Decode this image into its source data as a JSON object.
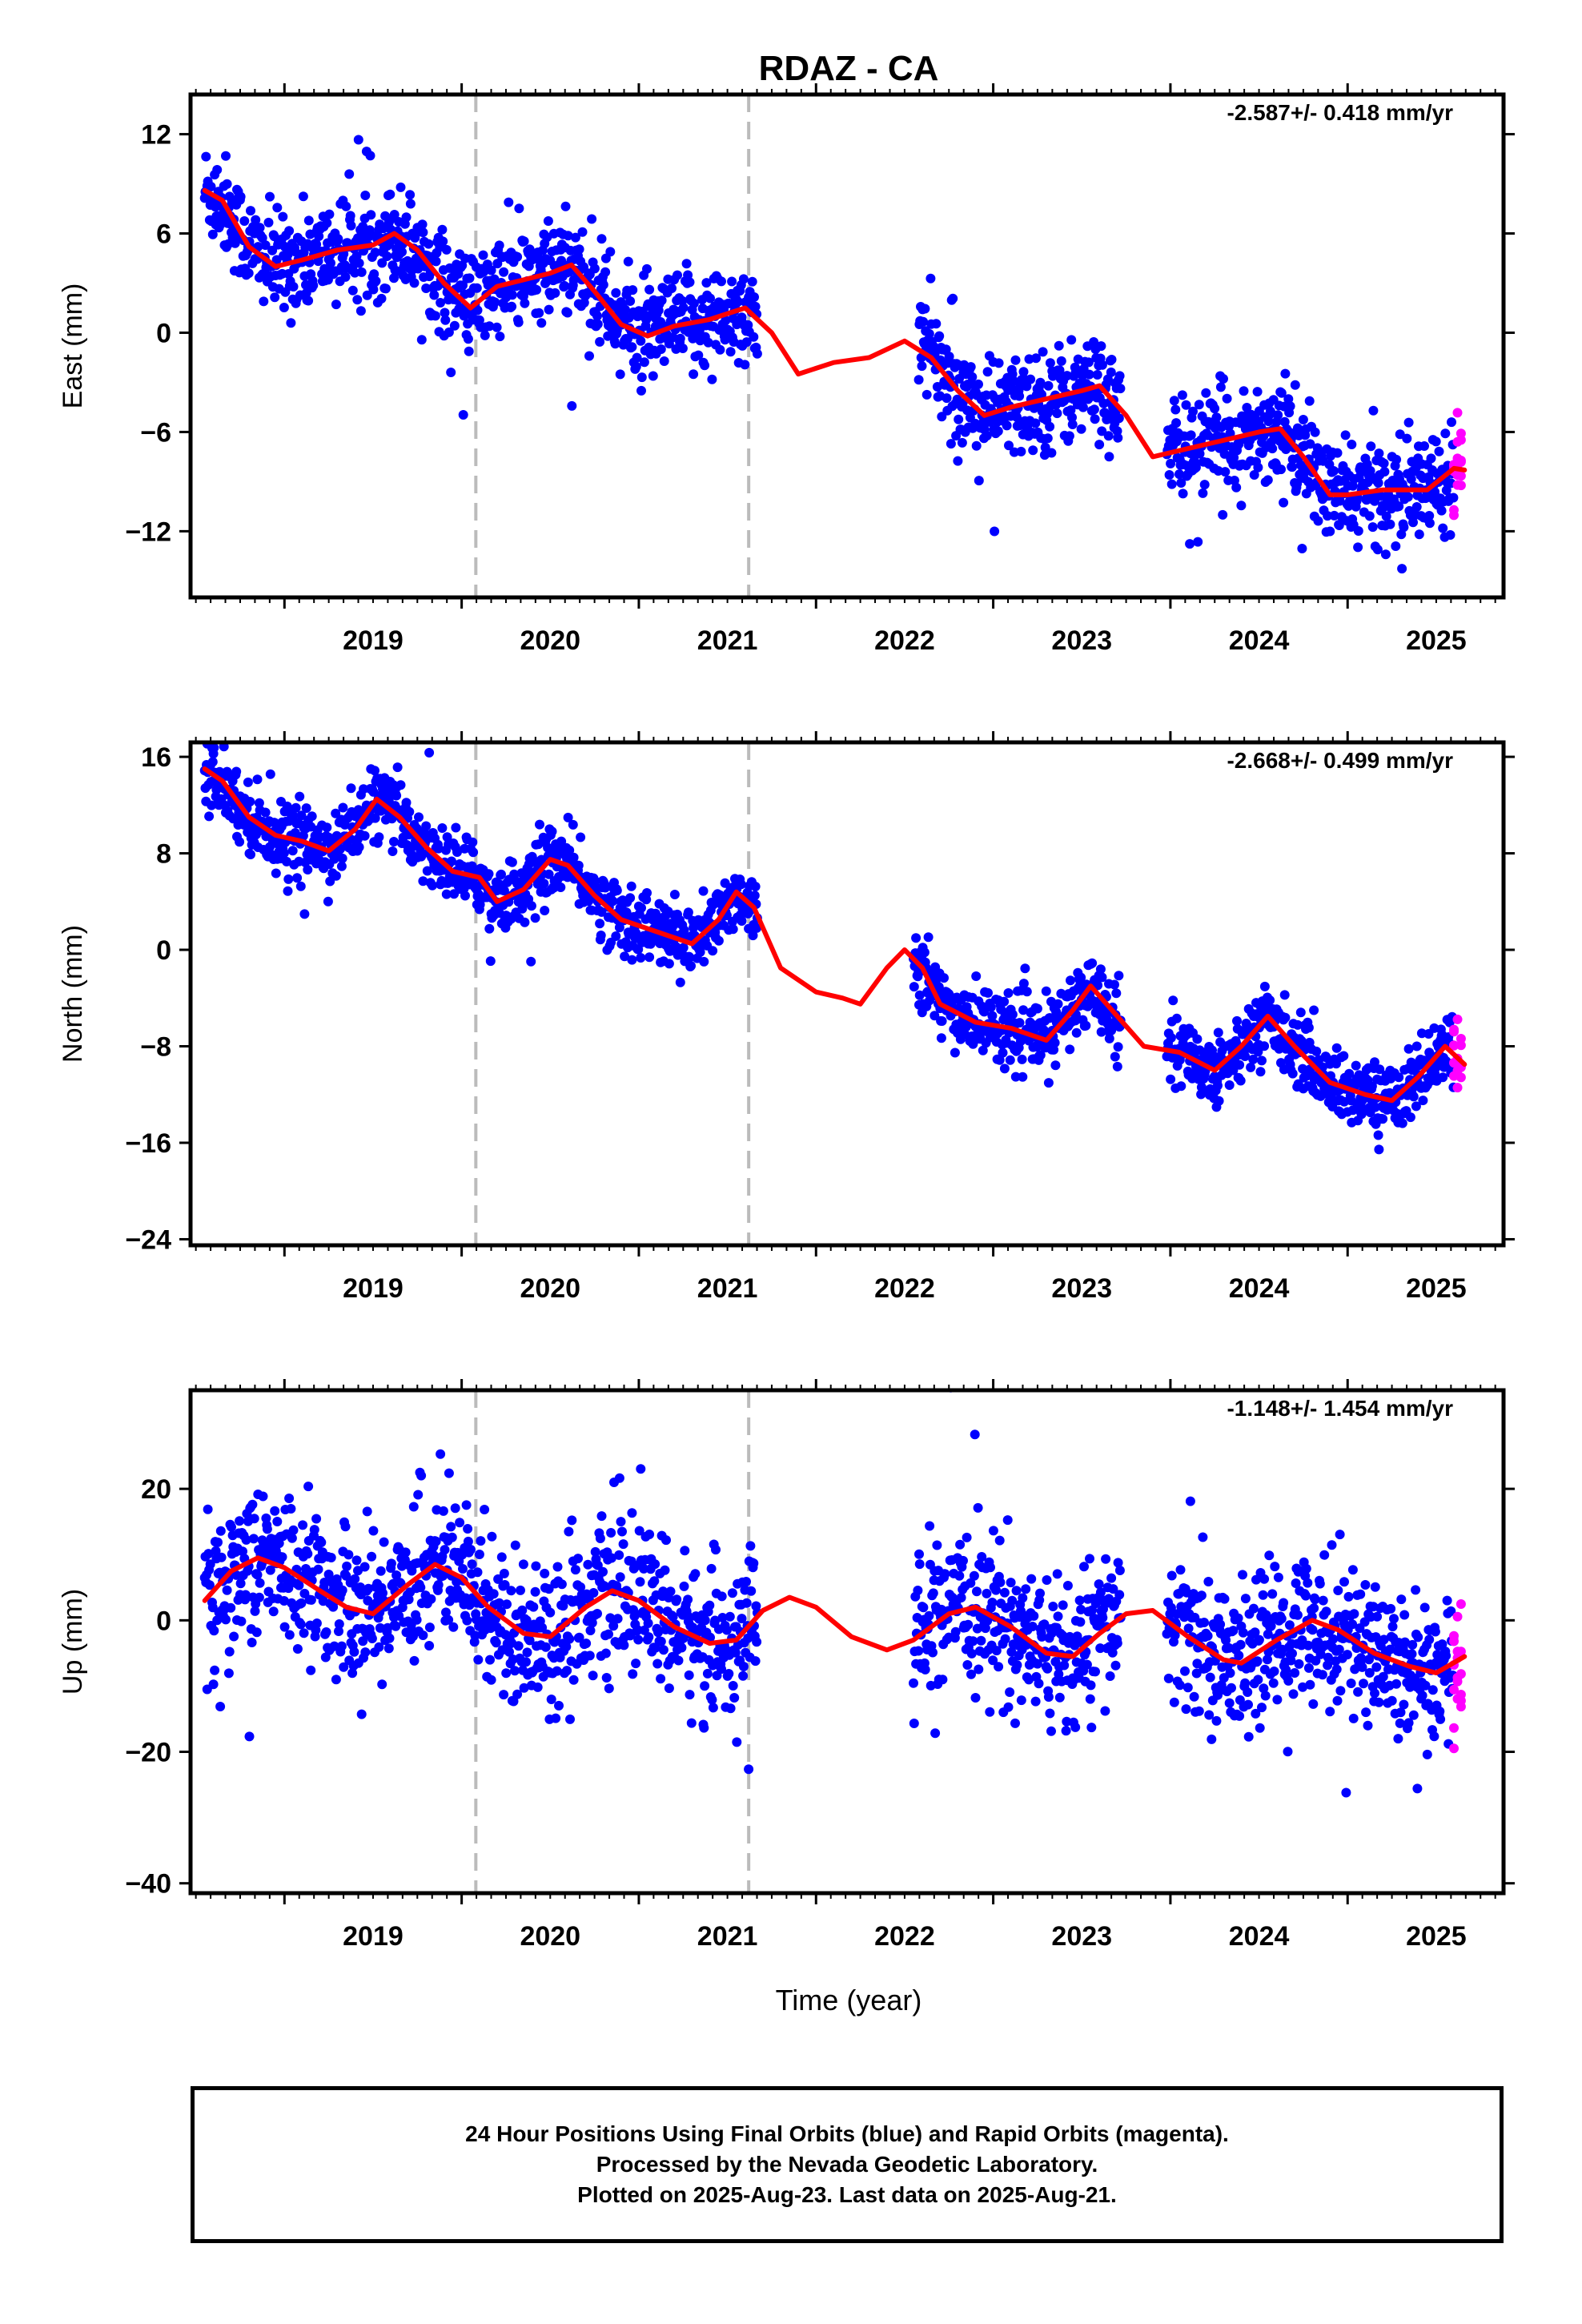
{
  "title": "RDAZ - CA",
  "xlabel": "Time (year)",
  "year_ticks": [
    "2019",
    "2020",
    "2021",
    "2022",
    "2023",
    "2024",
    "2025"
  ],
  "colors": {
    "final": "#0000ff",
    "rapid": "#ff00ff",
    "model": "#ff0000",
    "breaks": "#bbbbbb"
  },
  "footer": {
    "line1": "24 Hour Positions Using Final Orbits (blue) and Rapid Orbits (magenta).",
    "line2": "Processed by the Nevada Geodetic Laboratory.",
    "line3": "Plotted on 2025-Aug-23. Last data on 2025-Aug-21."
  },
  "chart_data": [
    {
      "type": "scatter",
      "component": "east",
      "ylabel": "East (mm)",
      "rate_label": "-2.587+/- 0.418 mm/yr",
      "xlim": [
        2018.47,
        2025.88
      ],
      "ylim": [
        -16,
        14.4
      ],
      "yticks": [
        12,
        6,
        0,
        -6,
        -12
      ],
      "ytick_labels": [
        "12",
        "6",
        "0",
        "−6",
        "−12"
      ],
      "equipment_breaks": [
        2020.08,
        2021.62
      ],
      "trend": {
        "offset": 8.5,
        "rate": -2.587,
        "t0": 2018.55
      },
      "seasonal": {
        "amp": 1.8,
        "phase": 0.3
      },
      "noise": 1.5,
      "gap_segments": [
        [
          2018.55,
          2021.67
        ],
        [
          2022.58,
          2023.72
        ],
        [
          2023.98,
          2025.6
        ]
      ],
      "rapid_range": [
        2025.6,
        2025.64
      ],
      "model_curve": [
        [
          2018.55,
          8.6
        ],
        [
          2018.65,
          8.0
        ],
        [
          2018.8,
          5.2
        ],
        [
          2018.95,
          4.0
        ],
        [
          2019.1,
          4.4
        ],
        [
          2019.3,
          5.0
        ],
        [
          2019.5,
          5.3
        ],
        [
          2019.62,
          6.0
        ],
        [
          2019.75,
          5.0
        ],
        [
          2019.9,
          3.0
        ],
        [
          2020.05,
          1.5
        ],
        [
          2020.2,
          2.8
        ],
        [
          2020.35,
          3.2
        ],
        [
          2020.5,
          3.6
        ],
        [
          2020.62,
          4.1
        ],
        [
          2020.75,
          2.5
        ],
        [
          2020.9,
          0.5
        ],
        [
          2021.05,
          -0.2
        ],
        [
          2021.2,
          0.4
        ],
        [
          2021.4,
          0.8
        ],
        [
          2021.6,
          1.5
        ],
        [
          2021.75,
          0.0
        ],
        [
          2021.9,
          -2.5
        ],
        [
          2022.1,
          -1.8
        ],
        [
          2022.3,
          -1.5
        ],
        [
          2022.5,
          -0.5
        ],
        [
          2022.65,
          -1.5
        ],
        [
          2022.8,
          -3.5
        ],
        [
          2022.95,
          -5.0
        ],
        [
          2023.1,
          -4.5
        ],
        [
          2023.3,
          -4.0
        ],
        [
          2023.5,
          -3.5
        ],
        [
          2023.6,
          -3.2
        ],
        [
          2023.75,
          -5.0
        ],
        [
          2023.9,
          -7.5
        ],
        [
          2024.1,
          -7.0
        ],
        [
          2024.3,
          -6.5
        ],
        [
          2024.5,
          -6.0
        ],
        [
          2024.62,
          -5.8
        ],
        [
          2024.75,
          -7.5
        ],
        [
          2024.9,
          -9.8
        ],
        [
          2025.0,
          -9.8
        ],
        [
          2025.2,
          -9.5
        ],
        [
          2025.45,
          -9.5
        ],
        [
          2025.6,
          -8.2
        ],
        [
          2025.66,
          -8.3
        ]
      ]
    },
    {
      "type": "scatter",
      "component": "north",
      "ylabel": "North (mm)",
      "rate_label": "-2.668+/- 0.499 mm/yr",
      "xlim": [
        2018.47,
        2025.88
      ],
      "ylim": [
        -24.5,
        17.2
      ],
      "yticks": [
        16,
        8,
        0,
        -8,
        -16,
        -24
      ],
      "ytick_labels": [
        "16",
        "8",
        "0",
        "−8",
        "−16",
        "−24"
      ],
      "equipment_breaks": [
        2020.08,
        2021.62
      ],
      "trend": {
        "offset": 15,
        "rate": -2.668,
        "t0": 2018.55
      },
      "seasonal": {
        "amp": 3.0,
        "phase": 0.55
      },
      "noise": 1.4,
      "gap_segments": [
        [
          2018.55,
          2021.67
        ],
        [
          2022.55,
          2023.72
        ],
        [
          2023.98,
          2025.6
        ]
      ],
      "rapid_range": [
        2025.6,
        2025.64
      ],
      "model_curve": [
        [
          2018.55,
          15.0
        ],
        [
          2018.65,
          14.0
        ],
        [
          2018.8,
          11.0
        ],
        [
          2018.95,
          9.5
        ],
        [
          2019.1,
          9.0
        ],
        [
          2019.25,
          8.2
        ],
        [
          2019.4,
          10.0
        ],
        [
          2019.52,
          12.5
        ],
        [
          2019.65,
          11.0
        ],
        [
          2019.8,
          8.5
        ],
        [
          2019.95,
          6.5
        ],
        [
          2020.1,
          6.0
        ],
        [
          2020.2,
          4.0
        ],
        [
          2020.35,
          5.0
        ],
        [
          2020.5,
          7.5
        ],
        [
          2020.6,
          7.0
        ],
        [
          2020.75,
          4.5
        ],
        [
          2020.9,
          2.5
        ],
        [
          2021.1,
          1.5
        ],
        [
          2021.3,
          0.5
        ],
        [
          2021.45,
          2.5
        ],
        [
          2021.55,
          4.8
        ],
        [
          2021.65,
          3.5
        ],
        [
          2021.8,
          -1.5
        ],
        [
          2022.0,
          -3.5
        ],
        [
          2022.15,
          -4.0
        ],
        [
          2022.25,
          -4.5
        ],
        [
          2022.4,
          -1.5
        ],
        [
          2022.5,
          0.0
        ],
        [
          2022.6,
          -1.5
        ],
        [
          2022.7,
          -4.5
        ],
        [
          2022.9,
          -6.0
        ],
        [
          2023.1,
          -6.5
        ],
        [
          2023.3,
          -7.5
        ],
        [
          2023.45,
          -5.0
        ],
        [
          2023.55,
          -3.0
        ],
        [
          2023.7,
          -5.5
        ],
        [
          2023.85,
          -8.0
        ],
        [
          2024.05,
          -8.5
        ],
        [
          2024.25,
          -10.0
        ],
        [
          2024.4,
          -8.0
        ],
        [
          2024.55,
          -5.5
        ],
        [
          2024.7,
          -8.0
        ],
        [
          2024.9,
          -11.0
        ],
        [
          2025.1,
          -12.0
        ],
        [
          2025.25,
          -12.5
        ],
        [
          2025.4,
          -10.5
        ],
        [
          2025.55,
          -8.0
        ],
        [
          2025.66,
          -9.5
        ]
      ]
    },
    {
      "type": "scatter",
      "component": "up",
      "ylabel": "Up (mm)",
      "rate_label": "-1.148+/- 1.454 mm/yr",
      "xlim": [
        2018.47,
        2025.88
      ],
      "ylim": [
        -41.5,
        35
      ],
      "yticks": [
        20,
        0,
        -20,
        -40
      ],
      "ytick_labels": [
        "20",
        "0",
        "−20",
        "−40"
      ],
      "equipment_breaks": [
        2020.08,
        2021.62
      ],
      "trend": {
        "offset": 4,
        "rate": -1.148,
        "t0": 2018.55
      },
      "seasonal": {
        "amp": 5.5,
        "phase": 0.85
      },
      "noise": 5.5,
      "gap_segments": [
        [
          2018.55,
          2021.67
        ],
        [
          2022.55,
          2023.72
        ],
        [
          2023.98,
          2025.6
        ]
      ],
      "rapid_range": [
        2025.6,
        2025.64
      ],
      "model_curve": [
        [
          2018.55,
          3.0
        ],
        [
          2018.7,
          7.5
        ],
        [
          2018.85,
          9.5
        ],
        [
          2019.0,
          8.0
        ],
        [
          2019.2,
          4.5
        ],
        [
          2019.35,
          2.0
        ],
        [
          2019.5,
          1.0
        ],
        [
          2019.7,
          5.5
        ],
        [
          2019.85,
          8.5
        ],
        [
          2020.0,
          6.5
        ],
        [
          2020.15,
          2.0
        ],
        [
          2020.35,
          -2.0
        ],
        [
          2020.5,
          -2.5
        ],
        [
          2020.7,
          2.0
        ],
        [
          2020.85,
          4.5
        ],
        [
          2021.0,
          3.0
        ],
        [
          2021.2,
          -1.0
        ],
        [
          2021.4,
          -3.5
        ],
        [
          2021.55,
          -3.0
        ],
        [
          2021.7,
          1.5
        ],
        [
          2021.85,
          3.5
        ],
        [
          2022.0,
          2.0
        ],
        [
          2022.2,
          -2.5
        ],
        [
          2022.4,
          -4.5
        ],
        [
          2022.55,
          -3.0
        ],
        [
          2022.75,
          1.0
        ],
        [
          2022.9,
          2.0
        ],
        [
          2023.1,
          -1.0
        ],
        [
          2023.3,
          -5.0
        ],
        [
          2023.45,
          -5.5
        ],
        [
          2023.6,
          -2.0
        ],
        [
          2023.75,
          1.0
        ],
        [
          2023.9,
          1.5
        ],
        [
          2024.1,
          -2.5
        ],
        [
          2024.3,
          -6.0
        ],
        [
          2024.4,
          -6.5
        ],
        [
          2024.6,
          -3.0
        ],
        [
          2024.8,
          0.0
        ],
        [
          2024.95,
          -1.5
        ],
        [
          2025.15,
          -5.0
        ],
        [
          2025.35,
          -7.0
        ],
        [
          2025.5,
          -8.0
        ],
        [
          2025.66,
          -5.5
        ]
      ]
    }
  ]
}
